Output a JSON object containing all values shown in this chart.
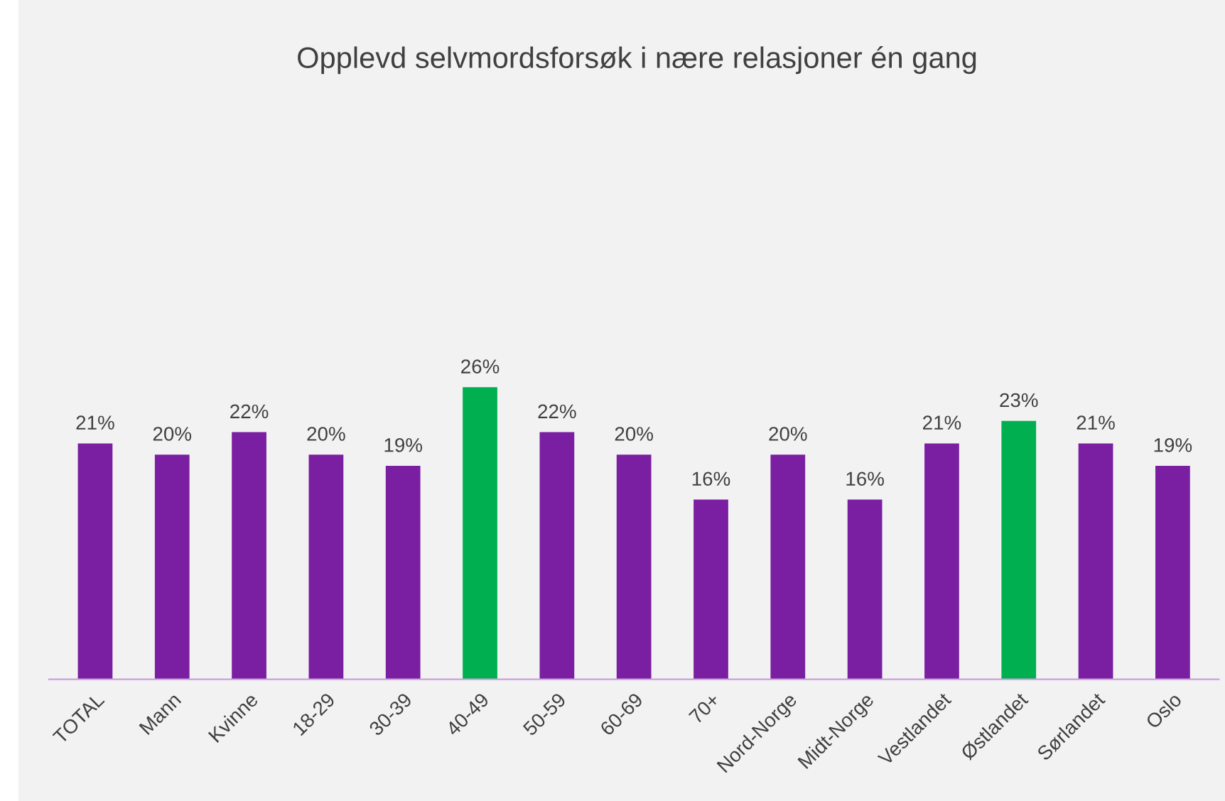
{
  "chart_data": {
    "type": "bar",
    "title": "Opplevd selvmordsforsøk i nære relasjoner én gang",
    "categories": [
      "TOTAL",
      "Mann",
      "Kvinne",
      "18-29",
      "30-39",
      "40-49",
      "50-59",
      "60-69",
      "70+",
      "Nord-Norge",
      "Midt-Norge",
      "Vestlandet",
      "Østlandet",
      "Sørlandet",
      "Oslo"
    ],
    "values": [
      21,
      20,
      22,
      20,
      19,
      26,
      22,
      20,
      16,
      20,
      16,
      21,
      23,
      21,
      19
    ],
    "value_labels": [
      "21%",
      "20%",
      "22%",
      "20%",
      "19%",
      "26%",
      "22%",
      "20%",
      "16%",
      "20%",
      "16%",
      "21%",
      "23%",
      "21%",
      "19%"
    ],
    "colors": [
      "#7b1fa2",
      "#7b1fa2",
      "#7b1fa2",
      "#7b1fa2",
      "#7b1fa2",
      "#00b050",
      "#7b1fa2",
      "#7b1fa2",
      "#7b1fa2",
      "#7b1fa2",
      "#7b1fa2",
      "#7b1fa2",
      "#00b050",
      "#7b1fa2",
      "#7b1fa2"
    ],
    "grid": false,
    "legend": false
  }
}
